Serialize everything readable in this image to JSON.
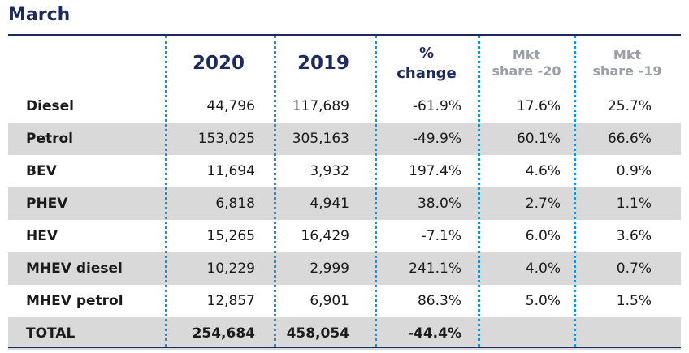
{
  "title": "March",
  "header": {
    "col_2020": "2020",
    "col_2019": "2019",
    "col_change_line1": "%",
    "col_change_line2": "change",
    "col_share20_line1": "Mkt",
    "col_share20_line2": "share -20",
    "col_share19_line1": "Mkt",
    "col_share19_line2": "share -19"
  },
  "rows": [
    {
      "label": "Diesel",
      "v2020": "44,796",
      "v2019": "117,689",
      "change": "-61.9%",
      "share20": "17.6%",
      "share19": "25.7%"
    },
    {
      "label": "Petrol",
      "v2020": "153,025",
      "v2019": "305,163",
      "change": "-49.9%",
      "share20": "60.1%",
      "share19": "66.6%"
    },
    {
      "label": "BEV",
      "v2020": "11,694",
      "v2019": "3,932",
      "change": "197.4%",
      "share20": "4.6%",
      "share19": "0.9%"
    },
    {
      "label": "PHEV",
      "v2020": "6,818",
      "v2019": "4,941",
      "change": "38.0%",
      "share20": "2.7%",
      "share19": "1.1%"
    },
    {
      "label": "HEV",
      "v2020": "15,265",
      "v2019": "16,429",
      "change": "-7.1%",
      "share20": "6.0%",
      "share19": "3.6%"
    },
    {
      "label": "MHEV diesel",
      "v2020": "10,229",
      "v2019": "2,999",
      "change": "241.1%",
      "share20": "4.0%",
      "share19": "0.7%"
    },
    {
      "label": "MHEV petrol",
      "v2020": "12,857",
      "v2019": "6,901",
      "change": "86.3%",
      "share20": "5.0%",
      "share19": "1.5%"
    }
  ],
  "total": {
    "label": "TOTAL",
    "v2020": "254,684",
    "v2019": "458,054",
    "change": "-44.4%"
  },
  "colors": {
    "navy": "#1f2a5c",
    "divider_blue": "#1e8fd5",
    "shade": "#d9d9da",
    "muted": "#9b9ea5"
  }
}
